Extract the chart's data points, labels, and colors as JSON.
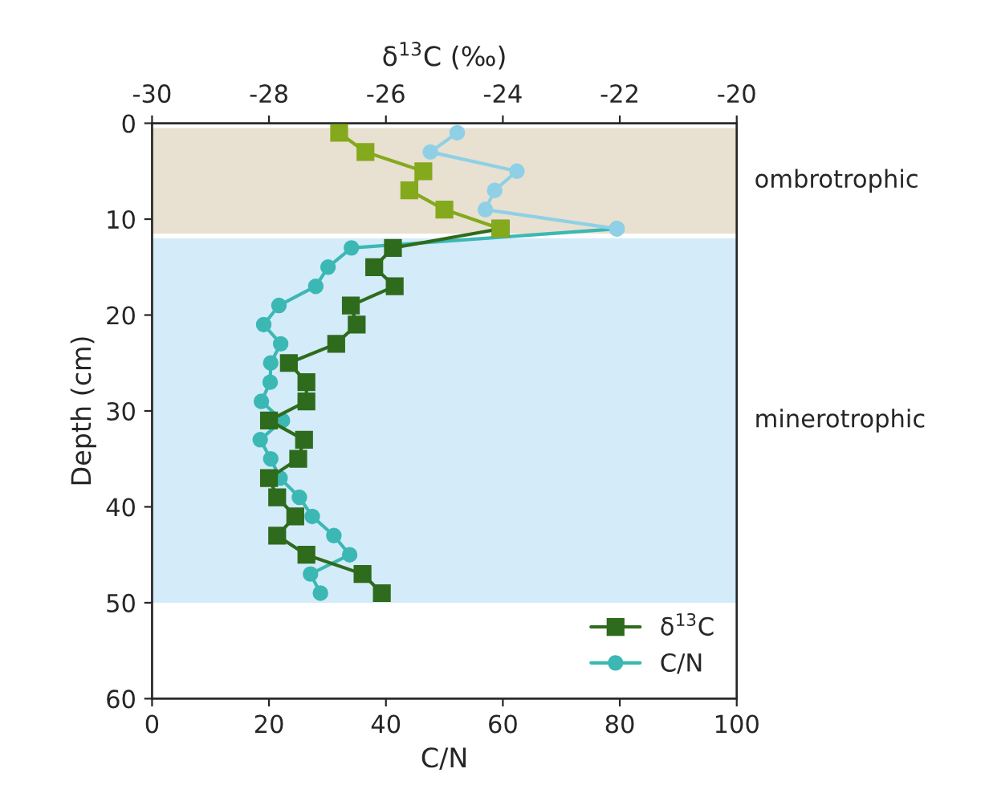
{
  "chart_data": {
    "type": "line",
    "xlabel": "C/N",
    "x2label": "δ$^{13}$C (‰)",
    "ylabel": "Depth (cm)",
    "xlim": [
      0,
      100
    ],
    "xticks": [
      0,
      20,
      40,
      60,
      80,
      100
    ],
    "x2lim": [
      -30,
      -20
    ],
    "x2ticks": [
      -30,
      -28,
      -26,
      -24,
      -22,
      -20
    ],
    "ylim": [
      60,
      0
    ],
    "yticks": [
      0,
      10,
      20,
      30,
      40,
      50,
      60
    ],
    "grid": false,
    "legend": "bottom right",
    "line_style": "solid",
    "bands": [
      {
        "axis": "y",
        "from": 0.5,
        "to": 11.5,
        "label": "ombrotrophic",
        "color": "#e8e0d0"
      },
      {
        "axis": "y",
        "from": 12,
        "to": 50,
        "label": "minerotrophic",
        "color": "#d4ebf9"
      }
    ],
    "series": [
      {
        "name": "δ$^{13}$C",
        "axis": "x2",
        "marker": "square",
        "color": "#2e6b1c",
        "x": [
          -24.04,
          -25.88,
          -26.2,
          -25.85,
          -26.6,
          -26.5,
          -26.85,
          -27.66,
          -27.36,
          -27.36,
          -28.0,
          -27.4,
          -27.5,
          -28.0,
          -27.86,
          -27.55,
          -27.86,
          -27.36,
          -26.4,
          -26.07
        ],
        "values": [
          11,
          13,
          15,
          17,
          19,
          21,
          23,
          25,
          27,
          29,
          31,
          33,
          35,
          37,
          39,
          41,
          43,
          45,
          47,
          49
        ]
      },
      {
        "name": "C/N",
        "marker": "circle",
        "color": "#3bb8b4",
        "x": [
          79.5,
          34.1,
          30.1,
          28.0,
          21.7,
          19.1,
          22.0,
          20.3,
          20.2,
          18.7,
          22.3,
          18.5,
          20.3,
          21.9,
          25.2,
          27.4,
          31.1,
          33.8,
          27.1,
          28.8
        ],
        "values": [
          11,
          13,
          15,
          17,
          19,
          21,
          23,
          25,
          27,
          29,
          31,
          33,
          35,
          37,
          39,
          41,
          43,
          45,
          47,
          49
        ]
      },
      {
        "axis": "x2",
        "marker": "square",
        "color": "#84a91c",
        "x": [
          -26.8,
          -26.35,
          -25.36,
          -25.6,
          -25.0,
          -24.04
        ],
        "values": [
          1,
          3,
          5,
          7,
          9,
          11
        ]
      },
      {
        "marker": "circle",
        "color": "#8fd0e6",
        "x": [
          52.2,
          47.6,
          62.4,
          58.6,
          57.0,
          79.5
        ],
        "values": [
          1,
          3,
          5,
          7,
          9,
          11
        ]
      }
    ]
  }
}
